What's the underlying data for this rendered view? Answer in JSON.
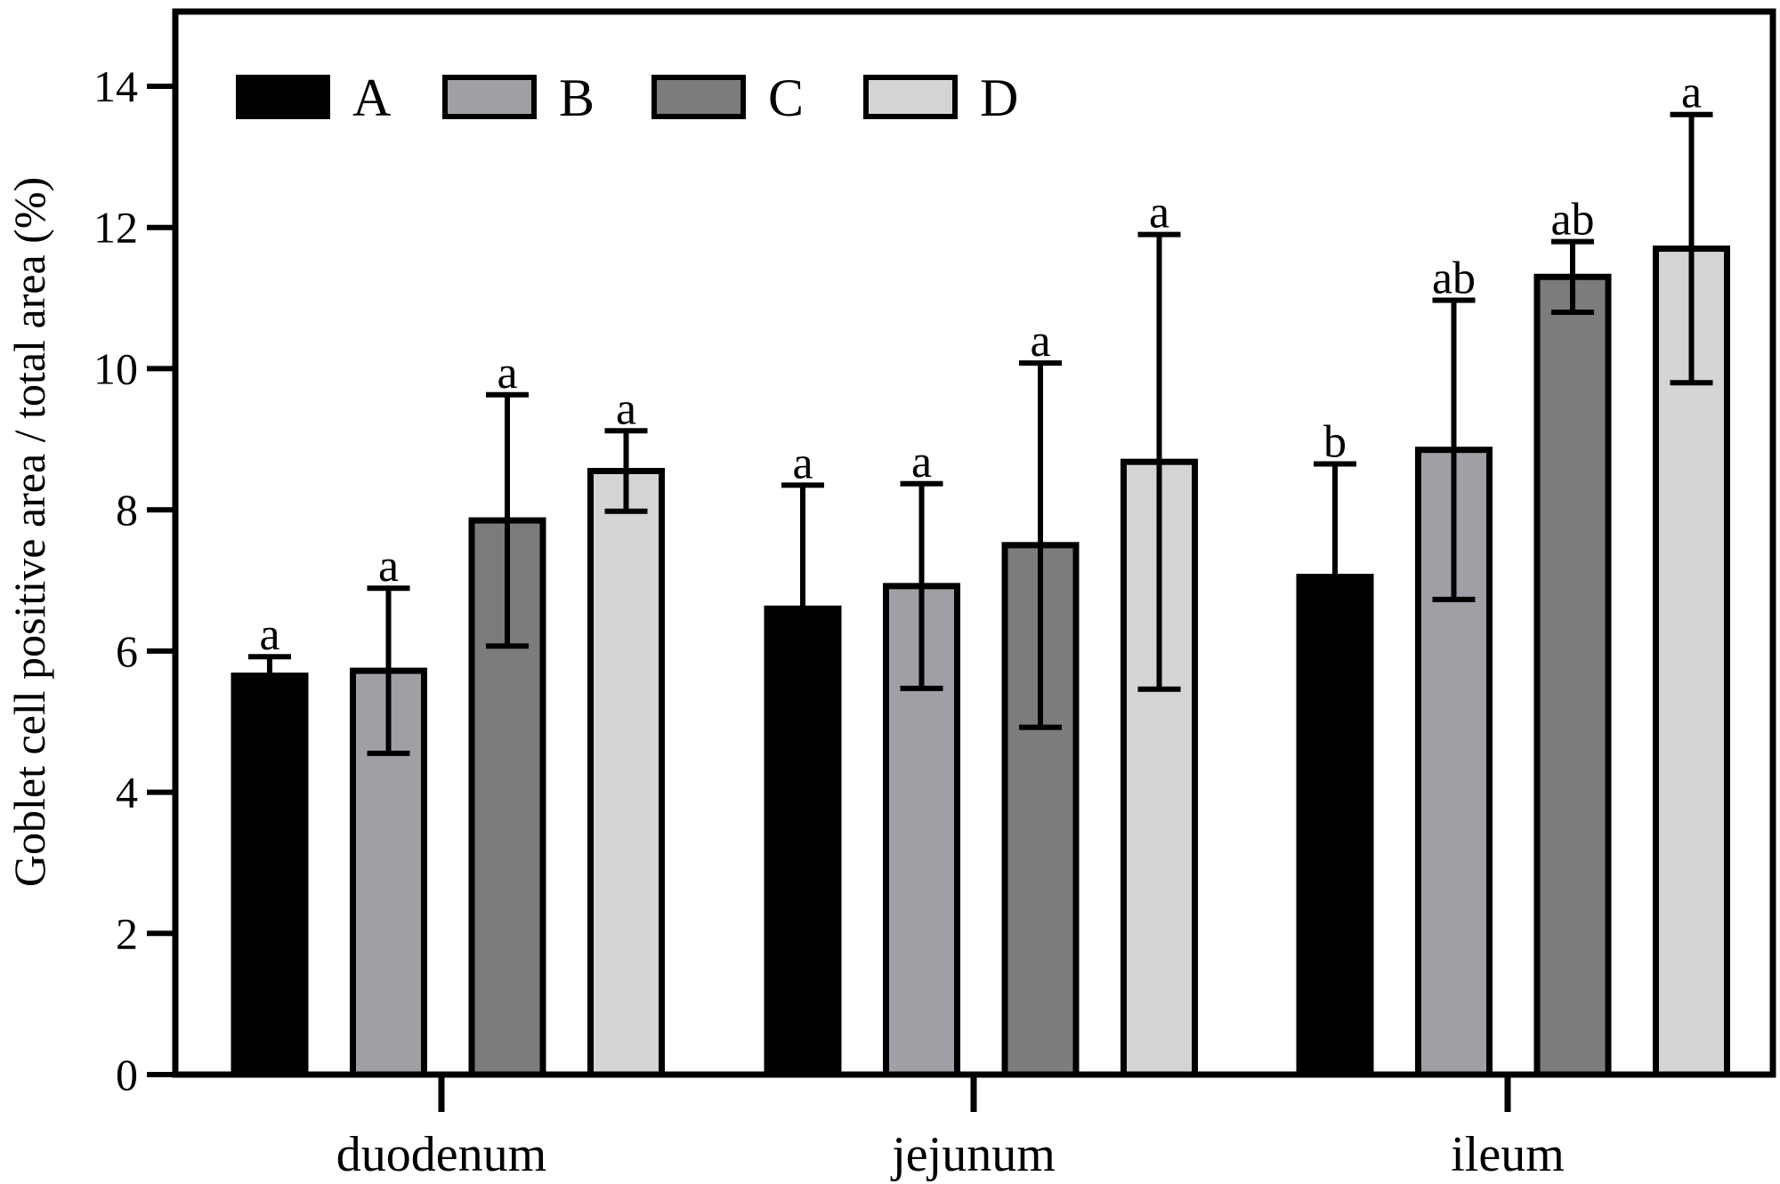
{
  "chart_data": {
    "type": "bar",
    "title": "",
    "xlabel": "",
    "ylabel": "Goblet cell positive area / total area (%)",
    "ylim": [
      0,
      14
    ],
    "yticks": [
      "0",
      "2",
      "4",
      "6",
      "8",
      "10",
      "12",
      "14"
    ],
    "categories": [
      "duodenum",
      "jejunum",
      "ileum"
    ],
    "legend_position": "top-left",
    "series": [
      {
        "name": "A",
        "color": "#000000",
        "values": [
          5.65,
          6.6,
          7.05
        ],
        "errors": [
          0.27,
          1.75,
          1.6
        ],
        "labels": [
          "a",
          "a",
          "b"
        ]
      },
      {
        "name": "B",
        "color": "#a19fa5",
        "values": [
          5.72,
          6.92,
          8.85
        ],
        "errors": [
          1.17,
          1.45,
          2.12
        ],
        "labels": [
          "a",
          "a",
          "ab"
        ]
      },
      {
        "name": "C",
        "color": "#7c7c7c",
        "values": [
          7.85,
          7.5,
          11.3
        ],
        "errors": [
          1.78,
          2.58,
          0.5
        ],
        "labels": [
          "a",
          "a",
          "ab"
        ]
      },
      {
        "name": "D",
        "color": "#d4d4d4",
        "values": [
          8.55,
          8.68,
          11.7
        ],
        "errors": [
          0.57,
          3.22,
          1.9
        ],
        "labels": [
          "a",
          "a",
          "a"
        ]
      }
    ]
  }
}
